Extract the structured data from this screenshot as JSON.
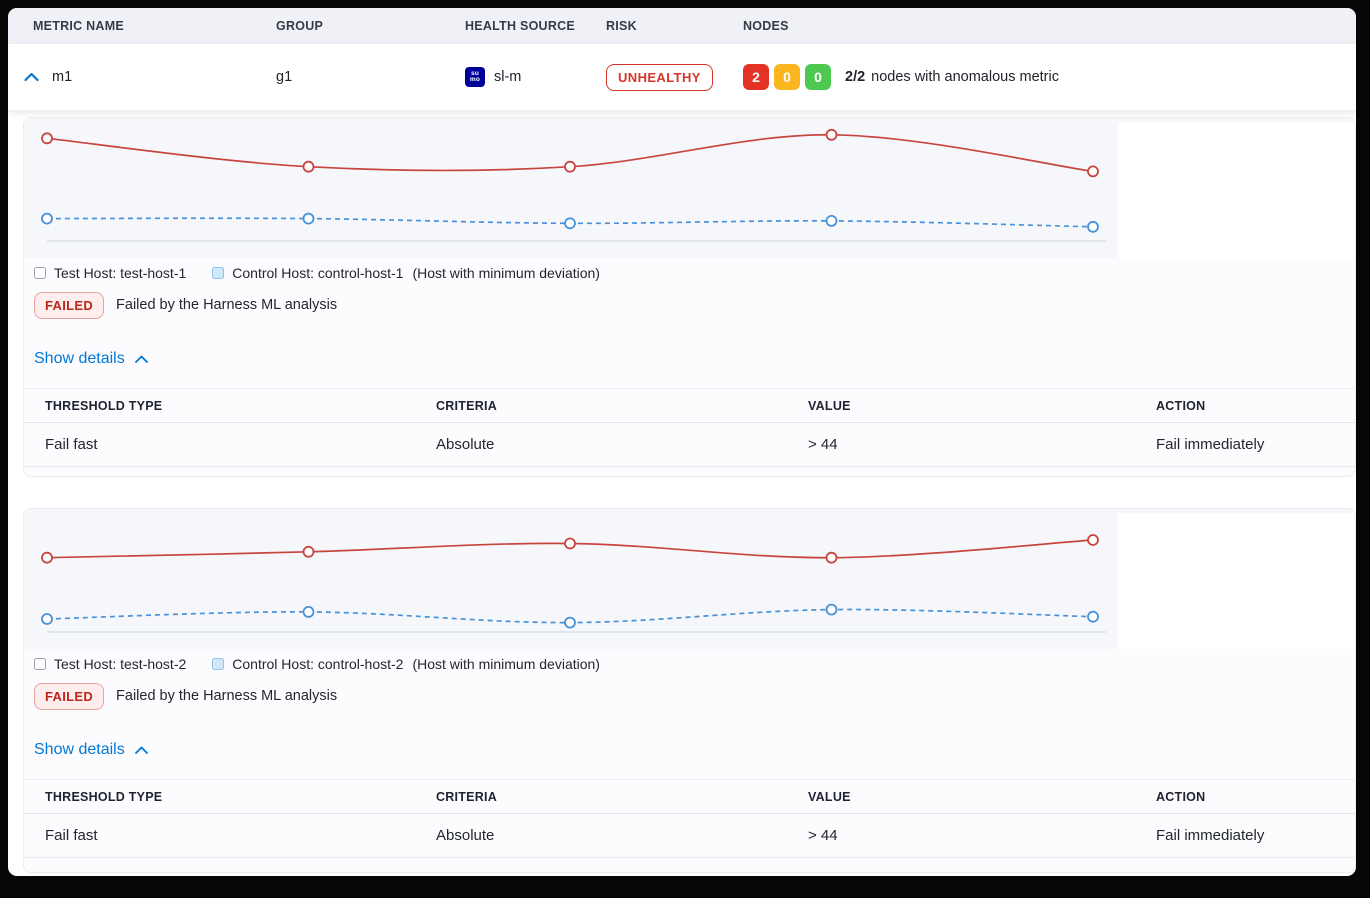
{
  "colors": {
    "accent_blue": "#0278d5",
    "risk_red": "#d6352a",
    "node_red": "#e43326",
    "node_amber": "#fbb51f",
    "node_green": "#4dc952",
    "test_line_red": "#c7453f",
    "control_line_blue": "#4792d9"
  },
  "header": {
    "col_metric_name": "METRIC NAME",
    "col_group": "GROUP",
    "col_health_source": "HEALTH SOURCE",
    "col_risk": "RISK",
    "col_nodes": "NODES"
  },
  "metric_row": {
    "metric_name": "m1",
    "group": "g1",
    "health_source_icon_line1": "su",
    "health_source_icon_line2": "mo",
    "health_source": "sl-m",
    "risk_badge": "UNHEALTHY",
    "node_counts": {
      "failed": "2",
      "warning": "0",
      "healthy": "0"
    },
    "nodes_ratio": "2/2",
    "nodes_caption": "nodes with anomalous metric"
  },
  "sections": [
    {
      "legend": {
        "test_label": "Test Host: test-host-1",
        "control_label": "Control Host: control-host-1",
        "note": "(Host with minimum deviation)"
      },
      "status": {
        "badge": "FAILED",
        "message": "Failed by the Harness ML analysis"
      },
      "details_toggle": "Show details",
      "table": {
        "headers": [
          "THRESHOLD TYPE",
          "CRITERIA",
          "VALUE",
          "ACTION"
        ],
        "rows": [
          [
            "Fail fast",
            "Absolute",
            "> 44",
            "Fail immediately"
          ]
        ]
      }
    },
    {
      "legend": {
        "test_label": "Test Host: test-host-2",
        "control_label": "Control Host: control-host-2",
        "note": "(Host with minimum deviation)"
      },
      "status": {
        "badge": "FAILED",
        "message": "Failed by the Harness ML analysis"
      },
      "details_toggle": "Show details",
      "table": {
        "headers": [
          "THRESHOLD TYPE",
          "CRITERIA",
          "VALUE",
          "ACTION"
        ],
        "rows": [
          [
            "Fail fast",
            "Absolute",
            "> 44",
            "Fail immediately"
          ]
        ]
      }
    }
  ],
  "chart_data": [
    {
      "type": "line",
      "title": "",
      "xlabel": "",
      "ylabel": "",
      "x": [
        1,
        2,
        3,
        4,
        5
      ],
      "ylim": [
        0,
        100
      ],
      "grid": false,
      "legend_position": "bottom",
      "series": [
        {
          "name": "Test Host: test-host-1",
          "color": "#c7453f",
          "style": "solid",
          "values": [
            87,
            63,
            63,
            90,
            59
          ]
        },
        {
          "name": "Control Host: control-host-1",
          "color": "#4792d9",
          "style": "dashed",
          "values": [
            19,
            19,
            15,
            17,
            12
          ]
        }
      ]
    },
    {
      "type": "line",
      "title": "",
      "xlabel": "",
      "ylabel": "",
      "x": [
        1,
        2,
        3,
        4,
        5
      ],
      "ylim": [
        0,
        100
      ],
      "grid": false,
      "legend_position": "bottom",
      "series": [
        {
          "name": "Test Host: test-host-2",
          "color": "#c7453f",
          "style": "solid",
          "values": [
            63,
            68,
            75,
            63,
            78
          ]
        },
        {
          "name": "Control Host: control-host-2",
          "color": "#4792d9",
          "style": "dashed",
          "values": [
            11,
            17,
            8,
            19,
            13
          ]
        }
      ]
    }
  ]
}
